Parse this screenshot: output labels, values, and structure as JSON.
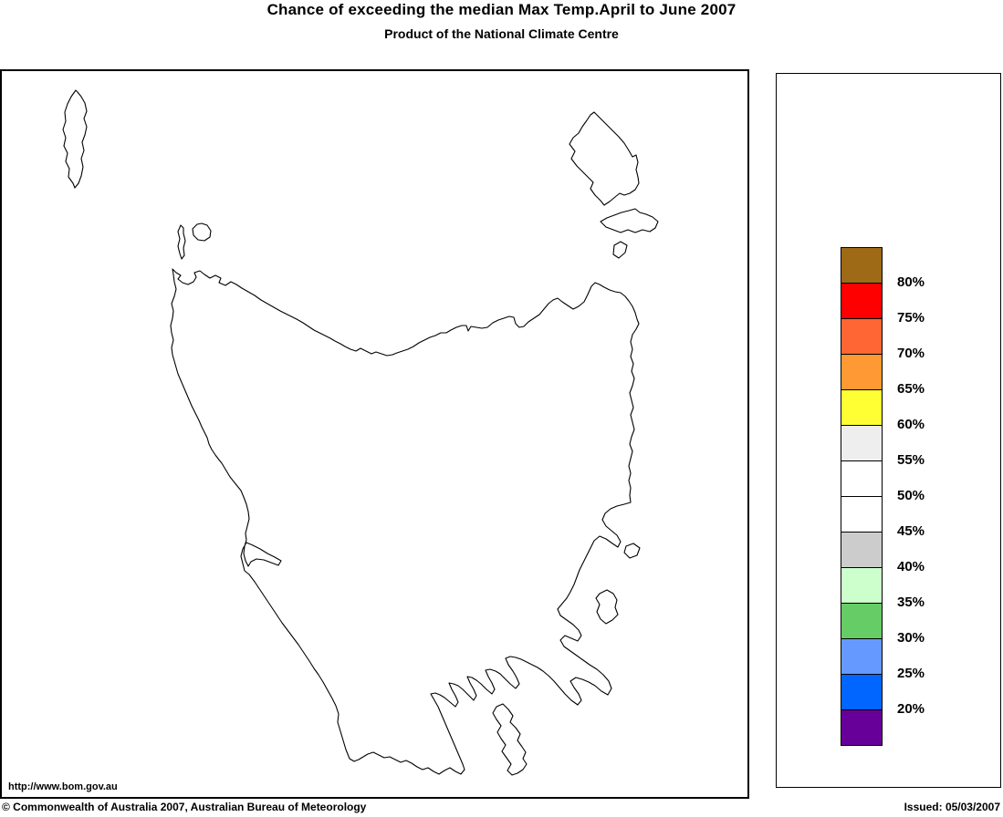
{
  "header": {
    "title": "Chance of exceeding the median Max Temp.April to June 2007",
    "subtitle": "Product of the National Climate Centre"
  },
  "legend": {
    "unit": "%",
    "labels": [
      "80%",
      "75%",
      "70%",
      "65%",
      "60%",
      "55%",
      "50%",
      "45%",
      "40%",
      "35%",
      "30%",
      "25%",
      "20%"
    ],
    "swatch_colors": [
      "#9E6A15",
      "#FF0000",
      "#FF6633",
      "#FF9933",
      "#FFFF33",
      "#EEEEEE",
      "#FFFFFF",
      "#FFFFFF",
      "#CCCCCC",
      "#CCFFCC",
      "#66CC66",
      "#6699FF",
      "#0066FF",
      "#660099"
    ]
  },
  "map": {
    "outline_color": "#000000",
    "background_color": "#FFFFFF"
  },
  "footer": {
    "url": "http://www.bom.gov.au",
    "copyright": "© Commonwealth of Australia 2007, Australian Bureau of Meteorology",
    "issued": "Issued: 05/03/2007"
  }
}
